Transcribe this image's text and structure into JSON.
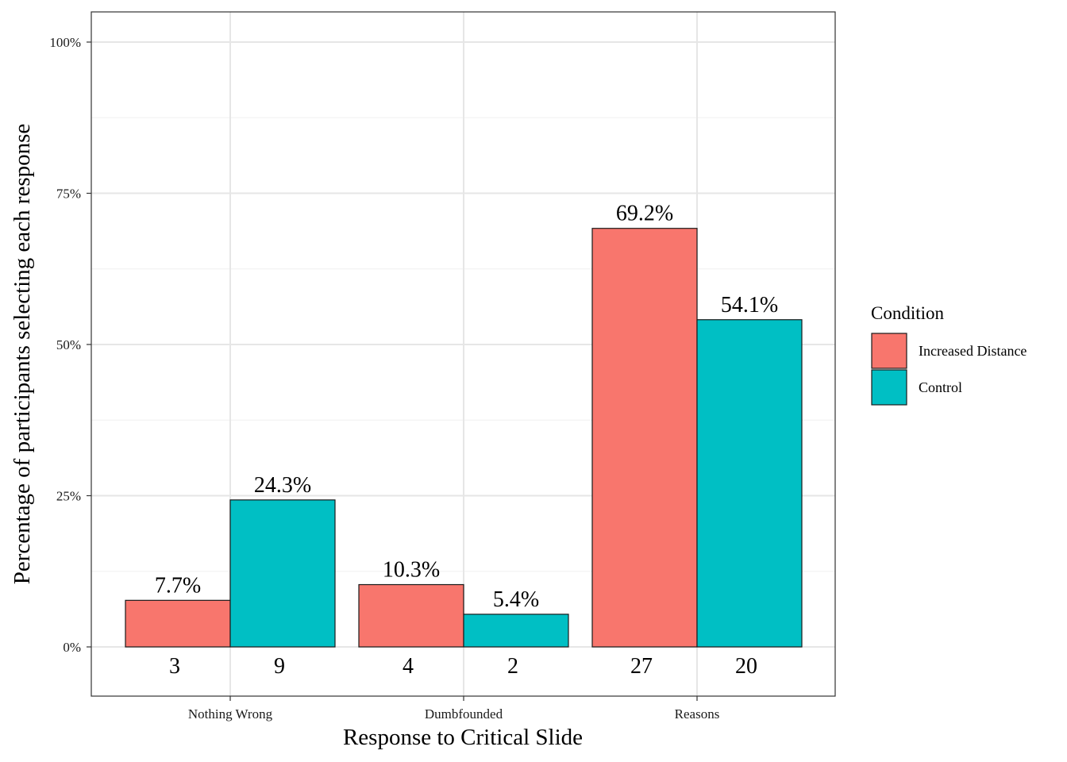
{
  "chart_data": {
    "type": "bar",
    "categories": [
      "Nothing Wrong",
      "Dumbfounded",
      "Reasons"
    ],
    "series": [
      {
        "name": "Increased Distance",
        "color": "#F8766D",
        "values": [
          7.7,
          10.3,
          69.2
        ],
        "value_labels": [
          "7.7%",
          "10.3%",
          "69.2%"
        ],
        "counts": [
          "3",
          "4",
          "27"
        ]
      },
      {
        "name": "Control",
        "color": "#00BFC4",
        "values": [
          24.3,
          5.4,
          54.1
        ],
        "value_labels": [
          "24.3%",
          "5.4%",
          "54.1%"
        ],
        "counts": [
          "9",
          "2",
          "20"
        ]
      }
    ],
    "xlabel": "Response to Critical Slide",
    "ylabel": "Percentage of participants selecting each response",
    "ylim": [
      -15,
      105
    ],
    "yticks": [
      0,
      25,
      50,
      75,
      100
    ],
    "ytick_labels": [
      "0%",
      "25%",
      "50%",
      "75%",
      "100%"
    ],
    "grid": true,
    "legend": {
      "title": "Condition",
      "position": "right"
    }
  }
}
